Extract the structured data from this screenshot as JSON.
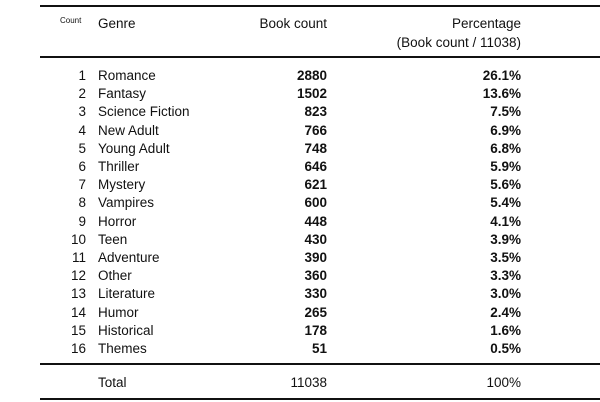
{
  "header": {
    "count": "Count",
    "genre": "Genre",
    "book_count": "Book count",
    "percentage": "Percentage",
    "percentage_sub": "(Book count / 11038)"
  },
  "rows": [
    {
      "n": "1",
      "genre": "Romance",
      "count": "2880",
      "pct": "26.1%"
    },
    {
      "n": "2",
      "genre": "Fantasy",
      "count": "1502",
      "pct": "13.6%"
    },
    {
      "n": "3",
      "genre": "Science Fiction",
      "count": "823",
      "pct": "7.5%"
    },
    {
      "n": "4",
      "genre": "New Adult",
      "count": "766",
      "pct": "6.9%"
    },
    {
      "n": "5",
      "genre": "Young Adult",
      "count": "748",
      "pct": "6.8%"
    },
    {
      "n": "6",
      "genre": "Thriller",
      "count": "646",
      "pct": "5.9%"
    },
    {
      "n": "7",
      "genre": "Mystery",
      "count": "621",
      "pct": "5.6%"
    },
    {
      "n": "8",
      "genre": "Vampires",
      "count": "600",
      "pct": "5.4%"
    },
    {
      "n": "9",
      "genre": "Horror",
      "count": "448",
      "pct": "4.1%"
    },
    {
      "n": "10",
      "genre": "Teen",
      "count": "430",
      "pct": "3.9%"
    },
    {
      "n": "11",
      "genre": "Adventure",
      "count": "390",
      "pct": "3.5%"
    },
    {
      "n": "12",
      "genre": "Other",
      "count": "360",
      "pct": "3.3%"
    },
    {
      "n": "13",
      "genre": "Literature",
      "count": "330",
      "pct": "3.0%"
    },
    {
      "n": "14",
      "genre": "Humor",
      "count": "265",
      "pct": "2.4%"
    },
    {
      "n": "15",
      "genre": "Historical",
      "count": "178",
      "pct": "1.6%"
    },
    {
      "n": "16",
      "genre": "Themes",
      "count": "51",
      "pct": "0.5%"
    }
  ],
  "total": {
    "label": "Total",
    "count": "11038",
    "pct": "100%"
  }
}
